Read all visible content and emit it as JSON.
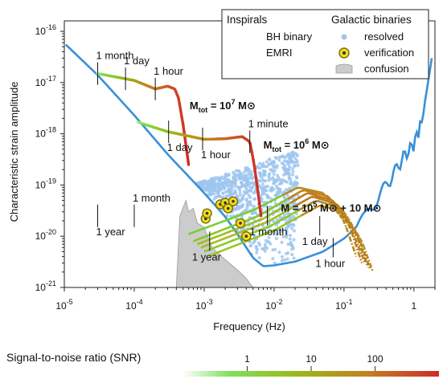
{
  "chart_data": {
    "type": "line",
    "x_axis": {
      "label": "Frequency (Hz)",
      "scale": "log",
      "range": [
        1e-05,
        2
      ],
      "ticks": [
        {
          "value": 1e-05,
          "base": "10",
          "exp": "-5"
        },
        {
          "value": 0.0001,
          "base": "10",
          "exp": "-4"
        },
        {
          "value": 0.001,
          "base": "10",
          "exp": "-3"
        },
        {
          "value": 0.01,
          "base": "10",
          "exp": "-2"
        },
        {
          "value": 0.1,
          "base": "10",
          "exp": "-1"
        },
        {
          "value": 1,
          "base": "1",
          "exp": ""
        }
      ]
    },
    "y_axis": {
      "label": "Characteristic strain amplitude",
      "scale": "log",
      "range": [
        1e-21,
        1.6e-16
      ],
      "ticks": [
        {
          "value": 1e-16,
          "base": "10",
          "exp": "-16"
        },
        {
          "value": 1e-17,
          "base": "10",
          "exp": "-17"
        },
        {
          "value": 1e-18,
          "base": "10",
          "exp": "-18"
        },
        {
          "value": 1e-19,
          "base": "10",
          "exp": "-19"
        },
        {
          "value": 1e-20,
          "base": "10",
          "exp": "-20"
        },
        {
          "value": 1e-21,
          "base": "10",
          "exp": "-21"
        }
      ]
    },
    "sensitivity_curve": {
      "color": "#3a8fd8",
      "points": [
        [
          1.05e-05,
          5.5e-17
        ],
        [
          3e-05,
          1.4e-17
        ],
        [
          0.0001,
          2.3e-18
        ],
        [
          0.0003,
          4e-19
        ],
        [
          0.001,
          7e-20
        ],
        [
          0.002,
          2.4e-20
        ],
        [
          0.003,
          1.1e-20
        ],
        [
          0.005,
          3.8e-21
        ],
        [
          0.007,
          2.6e-21
        ],
        [
          0.01,
          2.7e-21
        ],
        [
          0.02,
          3.2e-21
        ],
        [
          0.05,
          5e-21
        ],
        [
          0.1,
          9e-21
        ],
        [
          0.15,
          1.5e-20
        ],
        [
          0.2,
          2.4e-20
        ],
        [
          0.3,
          5.5e-20
        ],
        [
          0.5,
          1.6e-19
        ],
        [
          0.7,
          3.5e-19
        ],
        [
          1.0,
          6.5e-19
        ],
        [
          1.3,
          1.8e-18
        ],
        [
          1.5,
          6e-18
        ],
        [
          1.8,
          3e-17
        ]
      ],
      "wiggles": true
    },
    "confusion_noise": {
      "label": "confusion",
      "color": "#cccccc",
      "points": [
        [
          0.0004,
          1e-21
        ],
        [
          0.00045,
          2.5e-20
        ],
        [
          0.00055,
          5e-20
        ],
        [
          0.0006,
          3e-20
        ],
        [
          0.0007,
          3.5e-20
        ],
        [
          0.0008,
          1.8e-20
        ],
        [
          0.001,
          1.5e-20
        ],
        [
          0.0013,
          6e-21
        ],
        [
          0.002,
          3.5e-21
        ],
        [
          0.003,
          2.2e-21
        ],
        [
          0.004,
          1.5e-21
        ],
        [
          0.005,
          1e-21
        ]
      ]
    },
    "bh_binaries": [
      {
        "mass_label": "M",
        "mass_sub": "tot",
        "mass_value": " = 10",
        "mass_exp": "7",
        "mass_unit": " M⊙",
        "points": [
          [
            3e-05,
            1.5e-17
          ],
          [
            0.0001,
            1.1e-17
          ],
          [
            0.0002,
            7.5e-18
          ],
          [
            0.0003,
            8.5e-18
          ],
          [
            0.00038,
            7.5e-18
          ],
          [
            0.00043,
            5e-18
          ],
          [
            0.0005,
            1.5e-18
          ],
          [
            0.0006,
            2.5e-19
          ]
        ],
        "ticks": [
          {
            "x": 3e-05,
            "text": "1 month"
          },
          {
            "x": 7.5e-05,
            "text": "1 day"
          },
          {
            "x": 0.0002,
            "text": "1 hour"
          }
        ]
      },
      {
        "mass_label": "M",
        "mass_sub": "tot",
        "mass_value": " = 10",
        "mass_exp": "6",
        "mass_unit": " M⊙",
        "points": [
          [
            0.00011,
            1.7e-18
          ],
          [
            0.0003,
            1.1e-18
          ],
          [
            0.001,
            7.8e-19
          ],
          [
            0.002,
            8e-19
          ],
          [
            0.0035,
            8.8e-19
          ],
          [
            0.0045,
            7e-19
          ],
          [
            0.0052,
            2.5e-19
          ],
          [
            0.006,
            6e-20
          ],
          [
            0.0065,
            2.5e-20
          ]
        ],
        "ticks": [
          {
            "x": 3e-05,
            "text": "1 year"
          },
          {
            "x": 0.0001,
            "text": "1 month"
          },
          {
            "x": 0.00031,
            "text": "1 day"
          },
          {
            "x": 0.00095,
            "text": "1 hour"
          },
          {
            "x": 0.0045,
            "text": "1 minute"
          }
        ]
      }
    ],
    "emri": {
      "mass_text": "M = 10",
      "mass_exp": "5",
      "mass_mid": " M⊙ + 10 M⊙",
      "tracks": [
        {
          "f": [
            0.0006,
            0.005,
            0.022,
            0.05,
            0.1,
            0.15
          ],
          "h": [
            1.1e-20,
            3.2e-20,
            9e-20,
            7e-20,
            2e-20,
            4e-21
          ]
        },
        {
          "f": [
            0.0007,
            0.006,
            0.026,
            0.06,
            0.12,
            0.18
          ],
          "h": [
            8e-21,
            2.5e-20,
            8e-20,
            6e-20,
            1.6e-20,
            3e-21
          ]
        },
        {
          "f": [
            0.0008,
            0.007,
            0.03,
            0.07,
            0.13,
            0.2
          ],
          "h": [
            7e-21,
            2.2e-20,
            7e-20,
            5e-20,
            1.3e-20,
            3e-21
          ]
        },
        {
          "f": [
            0.0009,
            0.008,
            0.035,
            0.08,
            0.15,
            0.22
          ],
          "h": [
            6e-21,
            1.9e-20,
            6e-20,
            4.2e-20,
            1.1e-20,
            2.5e-21
          ]
        },
        {
          "f": [
            0.001,
            0.009,
            0.04,
            0.09,
            0.16,
            0.24
          ],
          "h": [
            5e-21,
            1.6e-20,
            5e-20,
            3.5e-20,
            1e-20,
            2.2e-21
          ]
        },
        {
          "f": [
            0.0012,
            0.01,
            0.045,
            0.1,
            0.18,
            0.26
          ],
          "h": [
            4.2e-21,
            1.3e-20,
            4e-20,
            3e-20,
            8e-21,
            2e-21
          ]
        }
      ],
      "ticks": [
        {
          "x": 0.0012,
          "text": "1 year"
        },
        {
          "x": 0.008,
          "text": "1 month"
        },
        {
          "x": 0.045,
          "text": "1 day"
        },
        {
          "x": 0.07,
          "text": "1 hour"
        }
      ]
    },
    "galactic_binaries": {
      "resolved_color": "#9ec6ee",
      "resolved_region": {
        "f_min": 0.0006,
        "f_max": 0.022
      },
      "verification": [
        [
          0.00105,
          2.2e-20
        ],
        [
          0.0011,
          2.8e-20
        ],
        [
          0.0017,
          4.2e-20
        ],
        [
          0.002,
          4.5e-20
        ],
        [
          0.0022,
          3.5e-20
        ],
        [
          0.0026,
          4.8e-20
        ],
        [
          0.0033,
          1.8e-20
        ],
        [
          0.004,
          1e-20
        ]
      ]
    },
    "legend": {
      "inspirals_title": "Inspirals",
      "binaries_title": "Galactic binaries",
      "bh_binary": "BH binary",
      "emri": "EMRI",
      "resolved": "resolved",
      "verification": "verification",
      "confusion": "confusion"
    },
    "snr_colorbar": {
      "title": "Signal-to-noise ratio (SNR)",
      "range": [
        0.1,
        1000
      ],
      "ticks": [
        {
          "value": 1,
          "text": "1"
        },
        {
          "value": 10,
          "text": "10"
        },
        {
          "value": 100,
          "text": "100"
        }
      ],
      "colors": [
        "#ffffff",
        "#7ee05a",
        "#9ab81a",
        "#c2801f",
        "#d02a2a"
      ]
    }
  }
}
